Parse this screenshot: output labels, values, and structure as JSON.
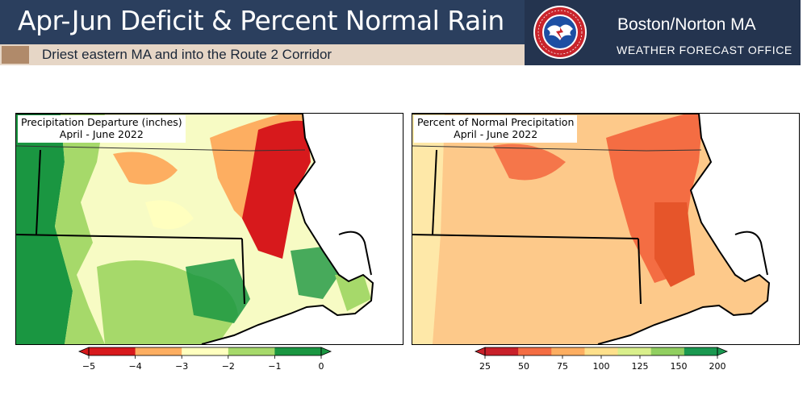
{
  "header": {
    "title": "Apr-Jun Deficit & Percent Normal Rain",
    "subtitle": "Driest eastern MA and into the Route 2 Corridor",
    "office_name": "Boston/Norton MA",
    "office_sub": "WEATHER FORECAST OFFICE",
    "logo_icon": "nws-logo-icon"
  },
  "maps": [
    {
      "label_line1": "Precipitation Departure (inches)",
      "label_line2": "April - June 2022",
      "colorbar": {
        "ticks": [
          "−5",
          "−4",
          "−3",
          "−2",
          "−1",
          "0"
        ],
        "colors": [
          "#d7191c",
          "#fdae61",
          "#ffffbf",
          "#a6d96a",
          "#1a9641"
        ]
      }
    },
    {
      "label_line1": "Percent of Normal Precipitation",
      "label_line2": "April - June 2022",
      "colorbar": {
        "ticks": [
          "25",
          "50",
          "75",
          "100",
          "125",
          "150",
          "200"
        ],
        "colors": [
          "#c8202a",
          "#f46d43",
          "#fdae61",
          "#fee08b",
          "#d9ef8b",
          "#91cf60",
          "#1a9850"
        ]
      }
    }
  ]
}
